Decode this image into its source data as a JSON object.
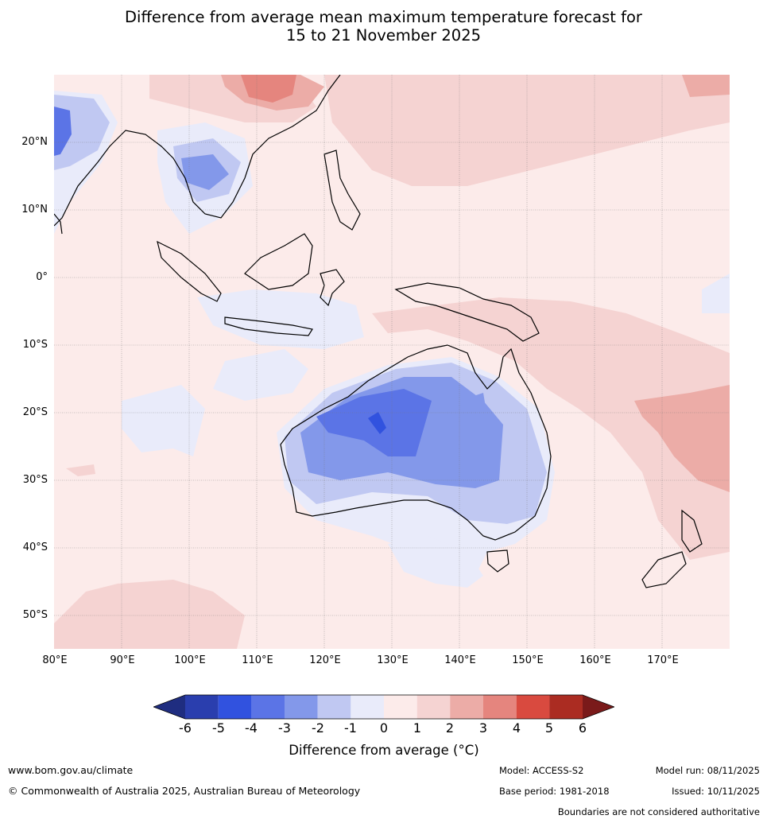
{
  "title": {
    "line1": "Difference from average mean maximum temperature forecast for",
    "line2": "15 to 21 November 2025"
  },
  "map": {
    "region": "Australia, South-East Asia and western Pacific",
    "lat_labels": [
      "20°N",
      "10°N",
      "0°",
      "10°S",
      "20°S",
      "30°S",
      "40°S",
      "50°S"
    ],
    "lon_labels": [
      "80°E",
      "90°E",
      "100°E",
      "110°E",
      "120°E",
      "130°E",
      "140°E",
      "150°E",
      "160°E",
      "170°E"
    ]
  },
  "legend": {
    "ticks": [
      "-6",
      "-5",
      "-4",
      "-3",
      "-2",
      "-1",
      "0",
      "1",
      "2",
      "3",
      "4",
      "5",
      "6"
    ],
    "label": "Difference from average (°C)",
    "colors": [
      "#1f2d80",
      "#2a3eae",
      "#3152df",
      "#5b74e6",
      "#8398ea",
      "#c0c8f2",
      "#e9ebfa",
      "#fcebea",
      "#f5d3d2",
      "#ecaca7",
      "#e5857e",
      "#d94a3f",
      "#ab2c22",
      "#7a1a1a"
    ]
  },
  "footer": {
    "website": "www.bom.gov.au/climate",
    "copyright": "© Commonwealth of Australia 2025, Australian Bureau of Meteorology",
    "model": "Model: ACCESS-S2",
    "base_period": "Base period: 1981-2018",
    "model_run": "Model run: 08/11/2025",
    "issued": "Issued: 10/11/2025",
    "disclaimer": "Boundaries are not considered authoritative"
  }
}
